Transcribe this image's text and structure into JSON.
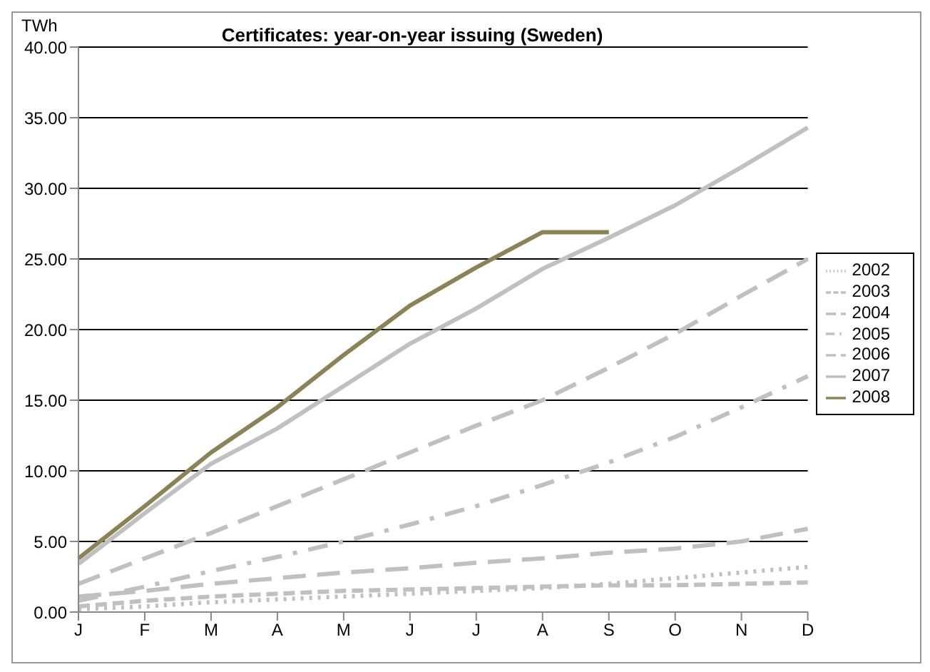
{
  "chart_data": {
    "type": "line",
    "title": "Certificates: year-on-year issuing (Sweden)",
    "ylabel": "TWh",
    "categories": [
      "J",
      "F",
      "M",
      "A",
      "M",
      "J",
      "J",
      "A",
      "S",
      "O",
      "N",
      "D"
    ],
    "series": [
      {
        "name": "2002",
        "color": "#c0c0c0",
        "line_style": "dotted",
        "values": [
          0.2,
          0.4,
          0.7,
          0.9,
          1.1,
          1.3,
          1.5,
          1.7,
          2.0,
          2.4,
          2.8,
          3.2
        ]
      },
      {
        "name": "2003",
        "color": "#c0c0c0",
        "line_style": "dashed",
        "values": [
          0.4,
          0.8,
          1.1,
          1.3,
          1.5,
          1.6,
          1.7,
          1.8,
          1.9,
          1.9,
          2.0,
          2.1
        ]
      },
      {
        "name": "2004",
        "color": "#c0c0c0",
        "line_style": "longdash",
        "values": [
          1.1,
          1.5,
          2.0,
          2.4,
          2.8,
          3.1,
          3.5,
          3.8,
          4.2,
          4.5,
          5.0,
          5.9
        ]
      },
      {
        "name": "2005",
        "color": "#c0c0c0",
        "line_style": "dashdot",
        "values": [
          0.8,
          1.8,
          2.9,
          3.9,
          5.0,
          6.2,
          7.5,
          9.0,
          10.6,
          12.4,
          14.5,
          16.7
        ]
      },
      {
        "name": "2006",
        "color": "#c0c0c0",
        "line_style": "longdash",
        "values": [
          2.0,
          3.8,
          5.6,
          7.5,
          9.4,
          11.3,
          13.2,
          15.0,
          17.3,
          19.7,
          22.4,
          25.0
        ]
      },
      {
        "name": "2007",
        "color": "#c0c0c0",
        "line_style": "solid",
        "values": [
          3.4,
          7.0,
          10.5,
          13.0,
          16.0,
          19.0,
          21.5,
          24.3,
          26.5,
          28.8,
          31.5,
          34.3
        ]
      },
      {
        "name": "2008",
        "color": "#8b8356",
        "line_style": "solid",
        "values": [
          3.8,
          7.5,
          11.3,
          14.5,
          18.2,
          21.7,
          24.4,
          26.9,
          26.9,
          null,
          null,
          null
        ]
      }
    ],
    "ylim": [
      0,
      40
    ],
    "yticks": [
      {
        "value": 0,
        "label": "0.00"
      },
      {
        "value": 5,
        "label": "5.00"
      },
      {
        "value": 10,
        "label": "10.00"
      },
      {
        "value": 15,
        "label": "15.00"
      },
      {
        "value": 20,
        "label": "20.00"
      },
      {
        "value": 25,
        "label": "25.00"
      },
      {
        "value": 30,
        "label": "30.00"
      },
      {
        "value": 35,
        "label": "35.00"
      },
      {
        "value": 40,
        "label": "40.00"
      }
    ],
    "grid": "y",
    "legend": "right",
    "marker": "none"
  }
}
